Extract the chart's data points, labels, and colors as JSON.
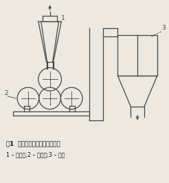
{
  "title": "图1  振动磨机开路工艺粉碎流程",
  "subtitle": "1 – 进料斗;2 – 振动磨;3 – 料斗",
  "bg_color": "#ede9e0",
  "line_color": "#444444",
  "fig_width": 2.46,
  "fig_height": 2.66,
  "dpi": 100
}
